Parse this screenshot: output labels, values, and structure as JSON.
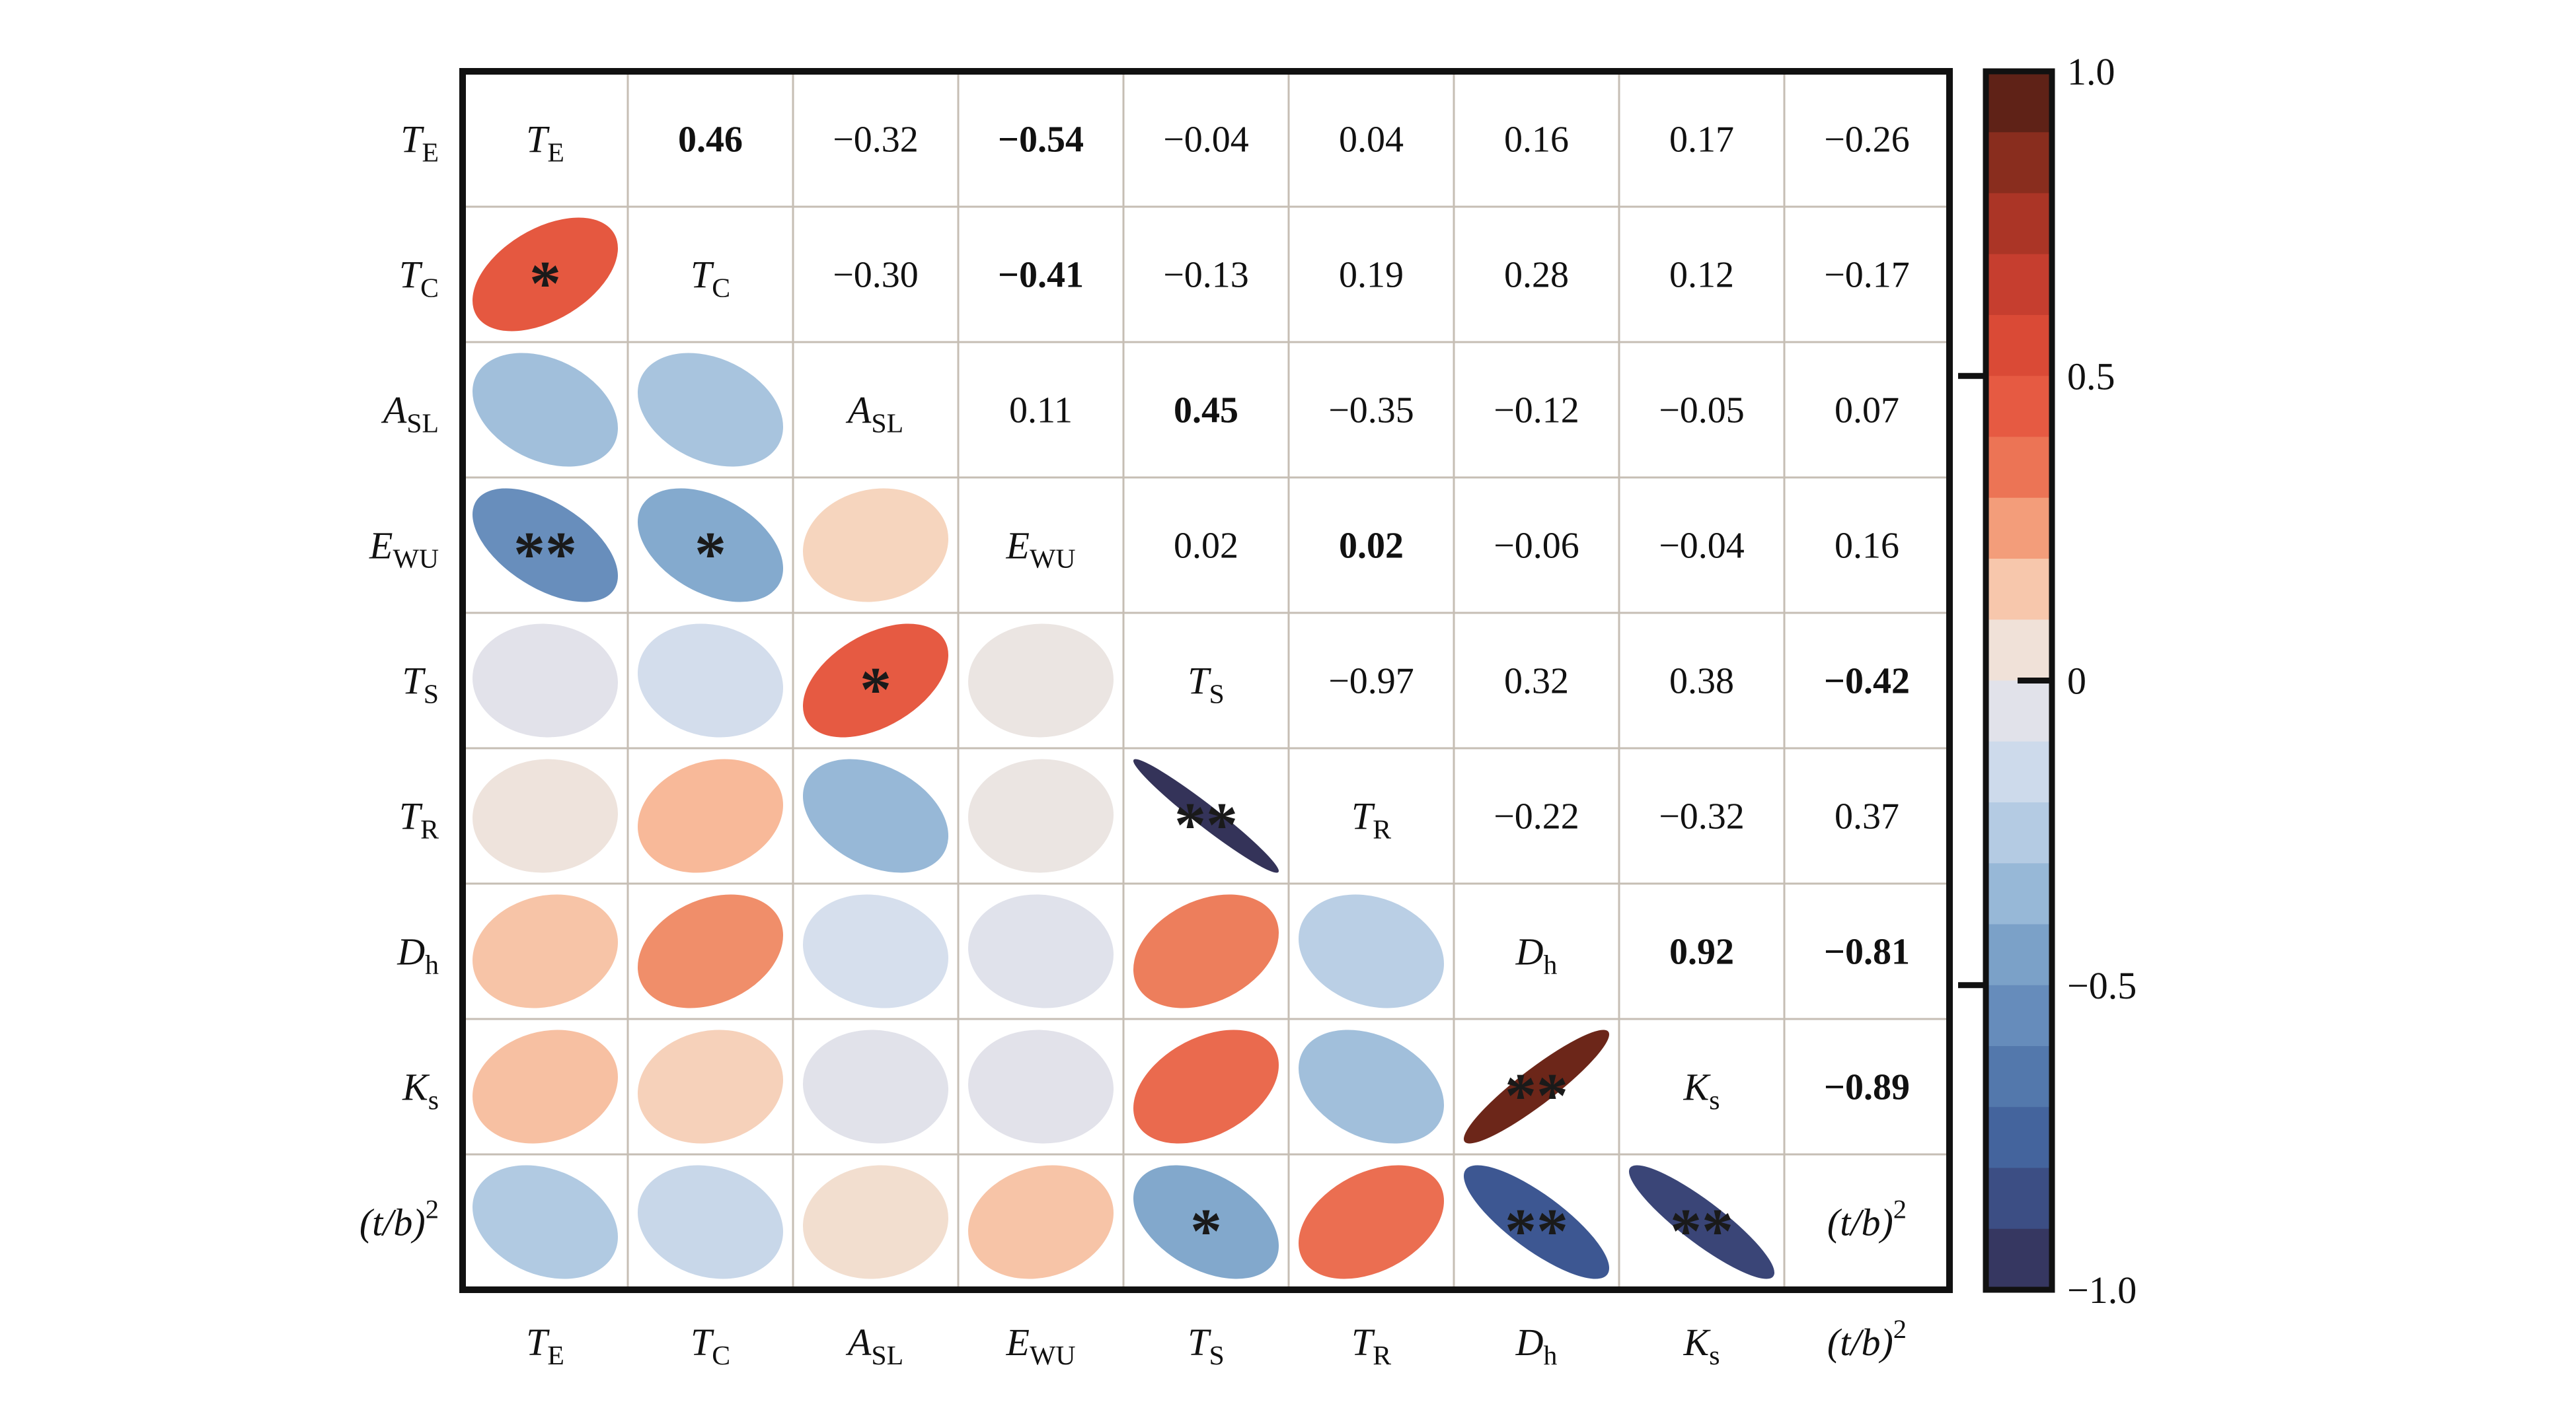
{
  "figure": {
    "description": "Correlation ellipse matrix with numeric upper triangle, ellipse lower triangle, significance stars and vertical colorbar",
    "colors": {
      "background": "#ffffff",
      "grid": "#c6beb4",
      "border": "#111111",
      "text": "#111111",
      "stars": "#1a1a1a"
    }
  },
  "chart_data": {
    "type": "heatmap",
    "subtype": "correlation-ellipse-matrix",
    "title": "",
    "legend_position": "right-colorbar",
    "grid": true,
    "variables": [
      {
        "base": "T",
        "sub": "E",
        "sup": ""
      },
      {
        "base": "T",
        "sub": "C",
        "sup": ""
      },
      {
        "base": "A",
        "sub": "SL",
        "sup": ""
      },
      {
        "base": "E",
        "sub": "WU",
        "sup": ""
      },
      {
        "base": "T",
        "sub": "S",
        "sup": ""
      },
      {
        "base": "T",
        "sub": "R",
        "sup": ""
      },
      {
        "base": "D",
        "sub": "h",
        "sup": ""
      },
      {
        "base": "K",
        "sub": "s",
        "sup": ""
      },
      {
        "base": "(t/b)",
        "sub": "",
        "sup": "2"
      }
    ],
    "pair_format": [
      "row_index",
      "col_index",
      "value",
      "bold",
      "stars"
    ],
    "pairs": [
      [
        0,
        1,
        0.46,
        true,
        "*"
      ],
      [
        0,
        2,
        -0.32,
        false,
        ""
      ],
      [
        0,
        3,
        -0.54,
        true,
        "**"
      ],
      [
        0,
        4,
        -0.04,
        false,
        ""
      ],
      [
        0,
        5,
        0.04,
        false,
        ""
      ],
      [
        0,
        6,
        0.16,
        false,
        ""
      ],
      [
        0,
        7,
        0.17,
        false,
        ""
      ],
      [
        0,
        8,
        -0.26,
        false,
        ""
      ],
      [
        1,
        2,
        -0.3,
        false,
        ""
      ],
      [
        1,
        3,
        -0.41,
        true,
        "*"
      ],
      [
        1,
        4,
        -0.13,
        false,
        ""
      ],
      [
        1,
        5,
        0.19,
        false,
        ""
      ],
      [
        1,
        6,
        0.28,
        false,
        ""
      ],
      [
        1,
        7,
        0.12,
        false,
        ""
      ],
      [
        1,
        8,
        -0.17,
        false,
        ""
      ],
      [
        2,
        3,
        0.11,
        false,
        ""
      ],
      [
        2,
        4,
        0.45,
        true,
        "*"
      ],
      [
        2,
        5,
        -0.35,
        false,
        ""
      ],
      [
        2,
        6,
        -0.12,
        false,
        ""
      ],
      [
        2,
        7,
        -0.05,
        false,
        ""
      ],
      [
        2,
        8,
        0.07,
        false,
        ""
      ],
      [
        3,
        4,
        0.02,
        false,
        ""
      ],
      [
        3,
        5,
        0.02,
        true,
        ""
      ],
      [
        3,
        6,
        -0.06,
        false,
        ""
      ],
      [
        3,
        7,
        -0.04,
        false,
        ""
      ],
      [
        3,
        8,
        0.16,
        false,
        ""
      ],
      [
        4,
        5,
        -0.97,
        false,
        "**"
      ],
      [
        4,
        6,
        0.32,
        false,
        ""
      ],
      [
        4,
        7,
        0.38,
        false,
        ""
      ],
      [
        4,
        8,
        -0.42,
        true,
        "*"
      ],
      [
        5,
        6,
        -0.22,
        false,
        ""
      ],
      [
        5,
        7,
        -0.32,
        false,
        ""
      ],
      [
        5,
        8,
        0.37,
        false,
        ""
      ],
      [
        6,
        7,
        0.92,
        true,
        "**"
      ],
      [
        6,
        8,
        -0.81,
        true,
        "**"
      ],
      [
        7,
        8,
        -0.89,
        true,
        "**"
      ]
    ],
    "colorbar": {
      "range": [
        -1,
        1
      ],
      "bands": 20,
      "ticks": [
        {
          "label": "1.0",
          "value": 1.0
        },
        {
          "label": "0.5",
          "value": 0.5
        },
        {
          "label": "0",
          "value": 0.0
        },
        {
          "label": "−0.5",
          "value": -0.5
        },
        {
          "label": "−1.0",
          "value": -1.0
        }
      ]
    },
    "palette_anchors": [
      [
        -1.0,
        "#322C4E"
      ],
      [
        -0.9,
        "#3A4374"
      ],
      [
        -0.8,
        "#3D5995"
      ],
      [
        -0.7,
        "#4A6EA4"
      ],
      [
        -0.6,
        "#5C82B4"
      ],
      [
        -0.5,
        "#7096C2"
      ],
      [
        -0.4,
        "#86ACCF"
      ],
      [
        -0.3,
        "#A8C4DE"
      ],
      [
        -0.2,
        "#BFD2E7"
      ],
      [
        -0.1,
        "#DCE2EE"
      ],
      [
        -0.03,
        "#E3E2E9"
      ],
      [
        0.03,
        "#EDE5E0"
      ],
      [
        0.1,
        "#F6D8C3"
      ],
      [
        0.2,
        "#F8B694"
      ],
      [
        0.3,
        "#EE8460"
      ],
      [
        0.4,
        "#E9644A"
      ],
      [
        0.5,
        "#E2503A"
      ],
      [
        0.6,
        "#D24333"
      ],
      [
        0.7,
        "#BA382A"
      ],
      [
        0.8,
        "#9C3121"
      ],
      [
        0.9,
        "#75281B"
      ],
      [
        1.0,
        "#481C13"
      ]
    ]
  }
}
